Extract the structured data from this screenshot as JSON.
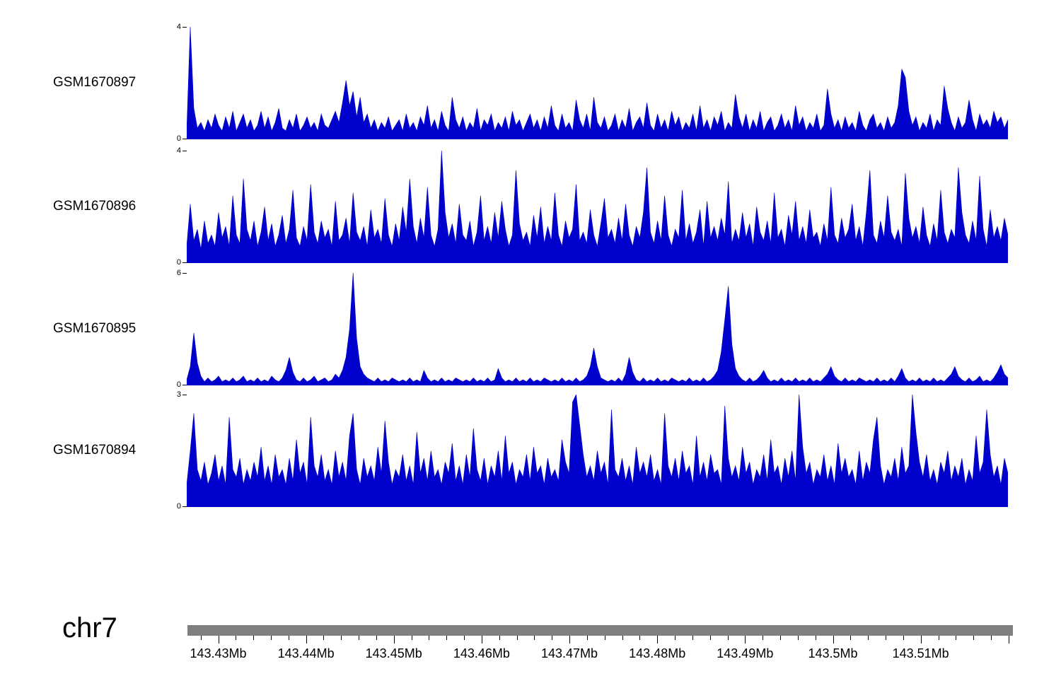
{
  "page": {
    "background": "#ffffff"
  },
  "chart_data": {
    "type": "area",
    "title": "",
    "description": "Genomic coverage signal tracks over chr7 region",
    "signal_color": "#0000cc",
    "region": {
      "chromosome": "chr7",
      "start_mb": 143.4265,
      "end_mb": 143.5205
    },
    "tracks": [
      {
        "label": "GSM1670897",
        "ymin": 0,
        "ymax": 4,
        "values": [
          0.3,
          4.0,
          1.1,
          0.4,
          0.6,
          0.3,
          0.7,
          0.4,
          0.9,
          0.5,
          0.3,
          0.8,
          0.4,
          1.0,
          0.3,
          0.6,
          0.9,
          0.4,
          0.7,
          0.3,
          0.5,
          1.0,
          0.4,
          0.8,
          0.3,
          0.6,
          1.1,
          0.4,
          0.3,
          0.7,
          0.4,
          0.9,
          0.3,
          0.5,
          0.8,
          0.4,
          0.6,
          0.3,
          0.9,
          0.5,
          0.4,
          0.7,
          1.0,
          0.6,
          1.3,
          2.1,
          1.2,
          1.7,
          0.8,
          1.5,
          0.6,
          0.9,
          0.4,
          0.7,
          0.3,
          0.6,
          0.4,
          0.8,
          0.3,
          0.5,
          0.7,
          0.3,
          0.9,
          0.4,
          0.6,
          0.3,
          0.8,
          0.5,
          1.2,
          0.4,
          0.7,
          0.3,
          1.0,
          0.5,
          0.3,
          1.5,
          0.7,
          0.4,
          0.8,
          0.3,
          0.6,
          0.4,
          1.1,
          0.3,
          0.7,
          0.5,
          0.9,
          0.3,
          0.6,
          0.4,
          0.8,
          0.3,
          1.0,
          0.5,
          0.7,
          0.3,
          0.6,
          0.9,
          0.4,
          0.7,
          0.3,
          0.8,
          0.4,
          1.2,
          0.5,
          0.3,
          0.9,
          0.4,
          0.6,
          0.3,
          1.4,
          0.7,
          0.4,
          0.9,
          0.3,
          1.5,
          0.6,
          0.4,
          0.8,
          0.3,
          0.5,
          0.9,
          0.3,
          0.7,
          0.4,
          1.1,
          0.3,
          0.6,
          0.8,
          0.4,
          1.3,
          0.5,
          0.3,
          0.9,
          0.4,
          0.7,
          0.3,
          1.0,
          0.5,
          0.8,
          0.3,
          0.6,
          0.4,
          0.9,
          0.3,
          1.2,
          0.4,
          0.7,
          0.3,
          0.8,
          0.5,
          1.0,
          0.3,
          0.6,
          0.4,
          1.6,
          0.8,
          0.4,
          0.9,
          0.3,
          0.7,
          0.4,
          1.0,
          0.3,
          0.6,
          0.8,
          0.3,
          0.5,
          0.9,
          0.4,
          0.7,
          0.3,
          1.2,
          0.5,
          0.8,
          0.3,
          0.6,
          0.4,
          0.9,
          0.3,
          0.5,
          1.8,
          0.9,
          0.4,
          0.7,
          0.3,
          0.8,
          0.4,
          0.6,
          0.3,
          1.0,
          0.5,
          0.3,
          0.7,
          0.9,
          0.4,
          0.6,
          0.3,
          0.8,
          0.4,
          0.6,
          1.2,
          2.5,
          2.2,
          1.0,
          0.5,
          0.8,
          0.3,
          0.6,
          0.4,
          0.9,
          0.3,
          0.7,
          0.5,
          1.9,
          1.1,
          0.6,
          0.3,
          0.8,
          0.4,
          0.6,
          1.4,
          0.7,
          0.3,
          0.9,
          0.5,
          0.7,
          0.4,
          1.0,
          0.6,
          0.8,
          0.4,
          0.7
        ]
      },
      {
        "label": "GSM1670896",
        "ymin": 0,
        "ymax": 4,
        "values": [
          0.6,
          2.1,
          0.8,
          1.2,
          0.5,
          1.5,
          0.7,
          1.0,
          0.6,
          1.8,
          0.9,
          1.3,
          0.6,
          2.4,
          1.0,
          0.7,
          3.0,
          1.2,
          0.8,
          1.5,
          0.6,
          1.1,
          2.0,
          0.8,
          1.4,
          0.6,
          1.0,
          1.7,
          0.7,
          1.2,
          2.6,
          0.9,
          0.6,
          1.3,
          0.8,
          2.8,
          1.1,
          0.7,
          1.5,
          0.9,
          1.2,
          0.6,
          2.2,
          0.8,
          1.0,
          1.6,
          0.7,
          2.5,
          1.1,
          0.8,
          1.3,
          0.6,
          1.9,
          0.9,
          1.2,
          0.7,
          2.3,
          1.0,
          0.6,
          1.4,
          0.8,
          2.0,
          1.1,
          3.0,
          1.3,
          0.7,
          1.6,
          0.9,
          2.7,
          1.0,
          0.6,
          1.2,
          4.0,
          1.8,
          0.9,
          1.4,
          0.7,
          2.1,
          1.0,
          0.8,
          1.5,
          0.6,
          1.1,
          2.4,
          0.8,
          1.3,
          0.7,
          1.8,
          0.9,
          2.2,
          1.2,
          0.6,
          1.0,
          3.3,
          1.4,
          0.8,
          1.1,
          0.6,
          1.7,
          0.9,
          2.0,
          0.7,
          1.3,
          0.8,
          2.5,
          1.0,
          0.6,
          1.5,
          0.9,
          1.2,
          2.8,
          0.8,
          1.1,
          0.7,
          1.9,
          1.0,
          0.6,
          1.4,
          2.3,
          0.9,
          1.2,
          0.7,
          1.6,
          0.8,
          2.1,
          1.0,
          0.6,
          1.3,
          0.9,
          1.8,
          3.4,
          1.1,
          0.7,
          1.5,
          0.8,
          2.4,
          1.0,
          0.6,
          1.2,
          0.9,
          2.6,
          0.8,
          1.4,
          0.7,
          1.1,
          1.9,
          0.6,
          2.2,
          0.9,
          1.3,
          0.8,
          1.6,
          1.0,
          2.9,
          0.7,
          1.2,
          0.8,
          1.8,
          0.9,
          1.4,
          0.6,
          2.0,
          1.1,
          0.8,
          1.5,
          0.7,
          2.5,
          0.9,
          1.2,
          0.6,
          1.7,
          1.0,
          2.2,
          0.8,
          1.3,
          0.7,
          1.9,
          0.9,
          1.1,
          0.6,
          1.4,
          0.8,
          2.7,
          1.0,
          0.7,
          1.6,
          0.9,
          1.2,
          2.1,
          0.8,
          1.3,
          0.6,
          1.8,
          3.3,
          1.0,
          0.7,
          1.5,
          0.9,
          2.4,
          1.1,
          0.8,
          1.2,
          0.6,
          3.2,
          1.6,
          0.9,
          1.3,
          0.7,
          2.0,
          1.0,
          0.6,
          1.4,
          0.8,
          2.6,
          1.1,
          0.7,
          1.2,
          0.9,
          3.4,
          1.8,
          1.0,
          0.7,
          1.5,
          0.8,
          3.1,
          1.2,
          0.6,
          1.9,
          0.9,
          1.3,
          0.8,
          1.6,
          1.0
        ]
      },
      {
        "label": "GSM1670895",
        "ymin": 0,
        "ymax": 6,
        "values": [
          0.3,
          1.0,
          2.8,
          1.2,
          0.5,
          0.2,
          0.4,
          0.2,
          0.3,
          0.5,
          0.2,
          0.3,
          0.2,
          0.4,
          0.2,
          0.3,
          0.5,
          0.2,
          0.3,
          0.2,
          0.4,
          0.2,
          0.3,
          0.2,
          0.5,
          0.3,
          0.2,
          0.4,
          0.8,
          1.5,
          0.7,
          0.3,
          0.2,
          0.4,
          0.2,
          0.3,
          0.5,
          0.2,
          0.3,
          0.4,
          0.2,
          0.3,
          0.6,
          0.4,
          0.8,
          1.5,
          3.0,
          6.0,
          2.5,
          1.0,
          0.6,
          0.4,
          0.3,
          0.2,
          0.4,
          0.2,
          0.3,
          0.2,
          0.4,
          0.3,
          0.2,
          0.3,
          0.2,
          0.4,
          0.2,
          0.3,
          0.2,
          0.8,
          0.4,
          0.2,
          0.3,
          0.2,
          0.4,
          0.2,
          0.3,
          0.2,
          0.4,
          0.3,
          0.2,
          0.3,
          0.2,
          0.4,
          0.2,
          0.3,
          0.2,
          0.4,
          0.2,
          0.3,
          0.9,
          0.4,
          0.2,
          0.3,
          0.2,
          0.4,
          0.2,
          0.3,
          0.2,
          0.4,
          0.2,
          0.3,
          0.2,
          0.4,
          0.3,
          0.2,
          0.3,
          0.2,
          0.4,
          0.2,
          0.3,
          0.2,
          0.4,
          0.2,
          0.3,
          0.5,
          1.0,
          2.0,
          1.0,
          0.4,
          0.3,
          0.2,
          0.3,
          0.2,
          0.4,
          0.2,
          0.6,
          1.5,
          0.7,
          0.3,
          0.2,
          0.4,
          0.2,
          0.3,
          0.2,
          0.4,
          0.2,
          0.3,
          0.2,
          0.4,
          0.3,
          0.2,
          0.3,
          0.2,
          0.4,
          0.2,
          0.3,
          0.2,
          0.4,
          0.2,
          0.3,
          0.5,
          0.8,
          1.8,
          3.5,
          5.3,
          2.2,
          0.9,
          0.5,
          0.3,
          0.2,
          0.4,
          0.2,
          0.3,
          0.5,
          0.8,
          0.4,
          0.2,
          0.3,
          0.2,
          0.4,
          0.2,
          0.3,
          0.2,
          0.4,
          0.2,
          0.3,
          0.2,
          0.4,
          0.2,
          0.3,
          0.2,
          0.4,
          0.6,
          1.0,
          0.5,
          0.3,
          0.2,
          0.4,
          0.2,
          0.3,
          0.2,
          0.4,
          0.3,
          0.2,
          0.3,
          0.2,
          0.4,
          0.2,
          0.3,
          0.2,
          0.4,
          0.2,
          0.5,
          0.9,
          0.4,
          0.2,
          0.3,
          0.2,
          0.4,
          0.2,
          0.3,
          0.2,
          0.4,
          0.2,
          0.3,
          0.2,
          0.4,
          0.6,
          1.0,
          0.5,
          0.3,
          0.2,
          0.4,
          0.2,
          0.3,
          0.5,
          0.2,
          0.3,
          0.2,
          0.4,
          0.7,
          1.1,
          0.6,
          0.4
        ]
      },
      {
        "label": "GSM1670894",
        "ymin": 0,
        "ymax": 3,
        "values": [
          0.6,
          1.5,
          2.5,
          1.0,
          0.7,
          1.2,
          0.6,
          0.9,
          1.4,
          0.7,
          1.1,
          0.6,
          2.4,
          1.0,
          0.8,
          1.3,
          0.6,
          1.0,
          0.7,
          1.2,
          0.8,
          1.6,
          0.7,
          1.1,
          0.6,
          1.4,
          0.8,
          1.0,
          0.6,
          1.3,
          0.7,
          1.8,
          0.9,
          1.2,
          0.6,
          2.4,
          1.1,
          0.8,
          1.4,
          0.7,
          1.0,
          0.6,
          1.5,
          0.8,
          1.2,
          0.7,
          1.9,
          2.5,
          1.0,
          0.6,
          1.3,
          0.8,
          1.1,
          0.7,
          1.6,
          0.9,
          2.3,
          1.2,
          0.6,
          1.0,
          0.8,
          1.4,
          0.7,
          1.1,
          0.6,
          2.0,
          0.9,
          1.3,
          0.7,
          1.5,
          0.8,
          1.0,
          0.6,
          1.2,
          0.9,
          1.7,
          0.7,
          1.1,
          0.6,
          1.4,
          0.8,
          2.1,
          1.0,
          0.7,
          1.3,
          0.6,
          1.1,
          0.8,
          1.5,
          0.7,
          1.9,
          0.9,
          1.2,
          0.6,
          1.0,
          0.8,
          1.4,
          0.7,
          1.6,
          0.9,
          1.1,
          0.6,
          1.3,
          0.8,
          1.0,
          0.7,
          1.8,
          1.2,
          0.9,
          2.8,
          3.0,
          2.2,
          1.4,
          0.8,
          1.1,
          0.7,
          1.5,
          0.9,
          1.2,
          0.6,
          2.6,
          1.0,
          0.8,
          1.3,
          0.7,
          1.1,
          0.6,
          1.6,
          0.9,
          1.2,
          0.8,
          1.4,
          0.7,
          1.0,
          0.6,
          2.5,
          1.1,
          0.8,
          1.3,
          0.7,
          1.5,
          0.9,
          1.1,
          0.6,
          1.9,
          0.8,
          1.2,
          0.7,
          1.4,
          0.9,
          1.0,
          0.6,
          2.7,
          1.3,
          0.8,
          1.1,
          0.7,
          1.6,
          0.9,
          1.2,
          0.6,
          1.0,
          0.8,
          1.4,
          0.7,
          1.8,
          0.9,
          1.1,
          0.6,
          1.3,
          0.8,
          1.5,
          0.7,
          3.0,
          1.6,
          0.9,
          1.2,
          0.6,
          1.0,
          0.8,
          1.4,
          0.7,
          1.1,
          0.6,
          1.7,
          0.9,
          1.3,
          0.8,
          1.0,
          0.6,
          1.5,
          0.7,
          1.2,
          0.9,
          1.8,
          2.4,
          1.1,
          0.6,
          1.0,
          0.8,
          1.3,
          0.7,
          1.6,
          0.9,
          1.1,
          3.0,
          2.0,
          1.2,
          0.8,
          1.4,
          0.7,
          1.0,
          0.6,
          1.2,
          0.9,
          1.5,
          0.7,
          1.1,
          0.8,
          1.3,
          0.6,
          1.0,
          0.7,
          1.9,
          0.9,
          1.2,
          2.6,
          1.4,
          0.8,
          1.1,
          0.6,
          1.3,
          0.9
        ]
      }
    ],
    "ruler": {
      "chromosome_label": "chr7",
      "bar_color": "#7f7f7f",
      "start_mb": 143.4265,
      "end_mb": 143.5205,
      "major_step_mb": 0.01,
      "minor_step_mb": 0.002,
      "major_labels": [
        "143.43Mb",
        "143.44Mb",
        "143.45Mb",
        "143.46Mb",
        "143.47Mb",
        "143.48Mb",
        "143.49Mb",
        "143.5Mb",
        "143.51Mb"
      ]
    }
  }
}
